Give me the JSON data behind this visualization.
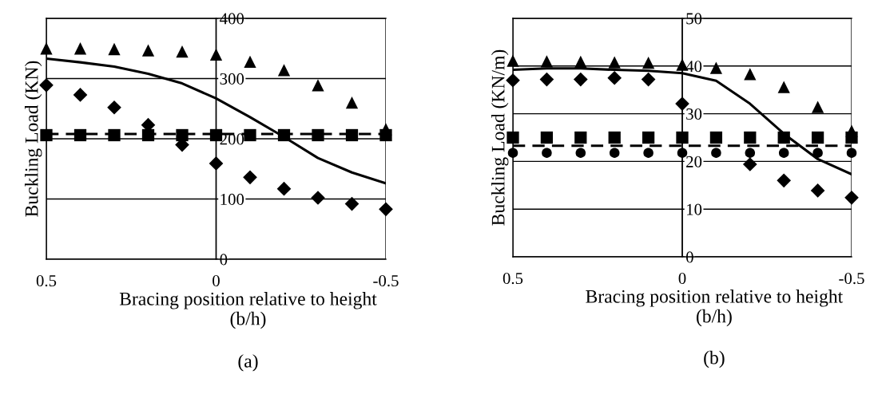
{
  "chart_data": [
    {
      "type": "scatter",
      "ylabel": "Buckling Load (KN)",
      "xlabel": "Bracing position relative to height\n(b/h)",
      "annotations": [
        "(a)"
      ],
      "x": [
        0.5,
        0.4,
        0.3,
        0.2,
        0.1,
        0,
        -0.1,
        -0.2,
        -0.3,
        -0.4,
        -0.5
      ],
      "xlim": [
        0.5,
        -0.5
      ],
      "xticks": [
        0.5,
        0,
        -0.5
      ],
      "ylim": [
        0,
        400
      ],
      "yticks": [
        0,
        100,
        200,
        300,
        400
      ],
      "grid": true,
      "series": [
        {
          "marker": "triangle",
          "color": "#000000",
          "values": [
            350,
            350,
            349,
            347,
            345,
            340,
            328,
            314,
            289,
            260,
            216
          ]
        },
        {
          "marker": "diamond",
          "color": "#000000",
          "values": [
            289,
            273,
            252,
            223,
            190,
            159,
            136,
            117,
            102,
            92,
            83
          ]
        },
        {
          "marker": "square",
          "color": "#000000",
          "values": [
            206,
            206,
            206,
            206,
            206,
            206,
            206,
            206,
            206,
            206,
            206
          ]
        },
        {
          "type": "line",
          "line_style": "dashed",
          "color": "#000000",
          "values": [
            208,
            208,
            208,
            208,
            208,
            208,
            208,
            208,
            208,
            208,
            208
          ]
        },
        {
          "type": "line",
          "line_style": "solid",
          "color": "#000000",
          "values": [
            333,
            327,
            320,
            308,
            292,
            267,
            236,
            203,
            168,
            144,
            126
          ]
        }
      ]
    },
    {
      "type": "scatter",
      "ylabel": "Buckling Load (KN/m)",
      "xlabel": "Bracing position relative to height\n(b/h)",
      "annotations": [
        "(b)"
      ],
      "x": [
        0.5,
        0.4,
        0.3,
        0.2,
        0.1,
        0,
        -0.1,
        -0.2,
        -0.3,
        -0.4,
        -0.5
      ],
      "xlim": [
        0.5,
        -0.5
      ],
      "xticks": [
        0.5,
        0,
        -0.5
      ],
      "ylim": [
        0,
        50
      ],
      "yticks": [
        0,
        10,
        20,
        30,
        40,
        50
      ],
      "grid": true,
      "series": [
        {
          "marker": "triangle",
          "color": "#000000",
          "values": [
            41.1,
            41.0,
            40.9,
            40.8,
            40.7,
            40.3,
            39.6,
            38.3,
            35.6,
            31.4,
            26.4
          ]
        },
        {
          "marker": "diamond",
          "color": "#000000",
          "values": [
            37.0,
            37.2,
            37.2,
            37.5,
            37.2,
            32.1,
            null,
            19.4,
            16.0,
            13.9,
            12.4
          ]
        },
        {
          "marker": "square",
          "color": "#000000",
          "values": [
            25,
            25,
            25,
            25,
            25,
            25,
            25,
            25,
            25,
            25,
            25
          ]
        },
        {
          "marker": "circle",
          "color": "#000000",
          "values": [
            21.8,
            21.8,
            21.8,
            21.8,
            21.8,
            21.8,
            21.8,
            21.8,
            21.8,
            21.8,
            21.8
          ]
        },
        {
          "type": "line",
          "line_style": "dashed",
          "color": "#000000",
          "values": [
            23.3,
            23.3,
            23.3,
            23.3,
            23.3,
            23.3,
            23.3,
            23.3,
            23.3,
            23.3,
            23.3
          ]
        },
        {
          "type": "line",
          "line_style": "solid",
          "color": "#000000",
          "values": [
            39.2,
            39.5,
            39.5,
            39.2,
            39.0,
            38.5,
            36.9,
            32.1,
            25.8,
            20.5,
            17.3
          ]
        }
      ]
    }
  ]
}
